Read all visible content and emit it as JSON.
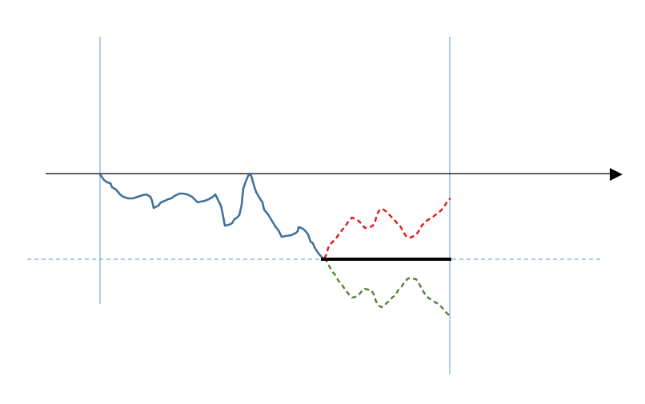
{
  "colors": {
    "background": "#ffffff",
    "axis": "#000000",
    "guide_lines": "#5b9bd5",
    "baseline": "#5b9bd5",
    "history_path": "#41719c",
    "upper_path": "#e0191b",
    "lower_path": "#548235",
    "level_bar": "#000000"
  }
}
